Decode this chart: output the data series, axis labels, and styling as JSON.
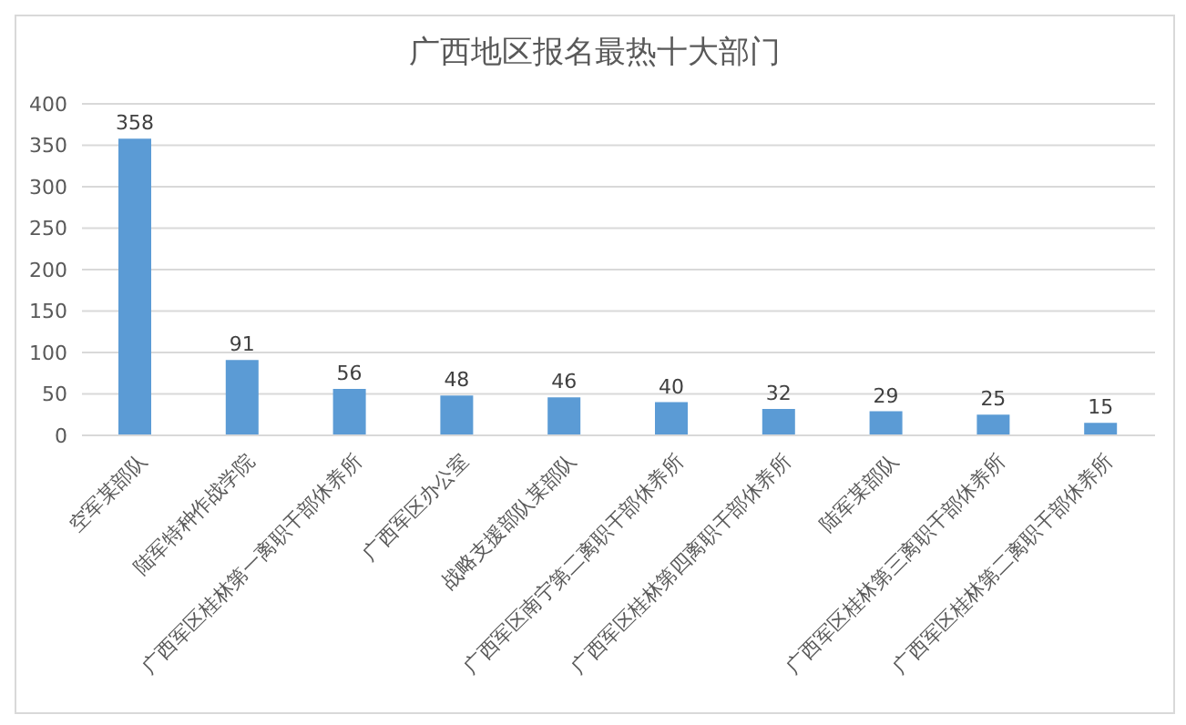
{
  "chart_data": {
    "type": "bar",
    "title": "广西地区报名最热十大部门",
    "categories": [
      "空军某部队",
      "陆军特种作战学院",
      "广西军区桂林第一离职干部休养所",
      "广西军区办公室",
      "战略支援部队某部队",
      "广西军区南宁第二离职干部休养所",
      "广西军区桂林第四离职干部休养所",
      "陆军某部队",
      "广西军区桂林第三离职干部休养所",
      "广西军区桂林第二离职干部休养所"
    ],
    "values": [
      358,
      91,
      56,
      48,
      46,
      40,
      32,
      29,
      25,
      15
    ],
    "color": "#5b9bd5",
    "ylim": [
      0,
      400
    ],
    "yticks": [
      0,
      50,
      100,
      150,
      200,
      250,
      300,
      350,
      400
    ],
    "grid": "y",
    "data_labels": true
  }
}
